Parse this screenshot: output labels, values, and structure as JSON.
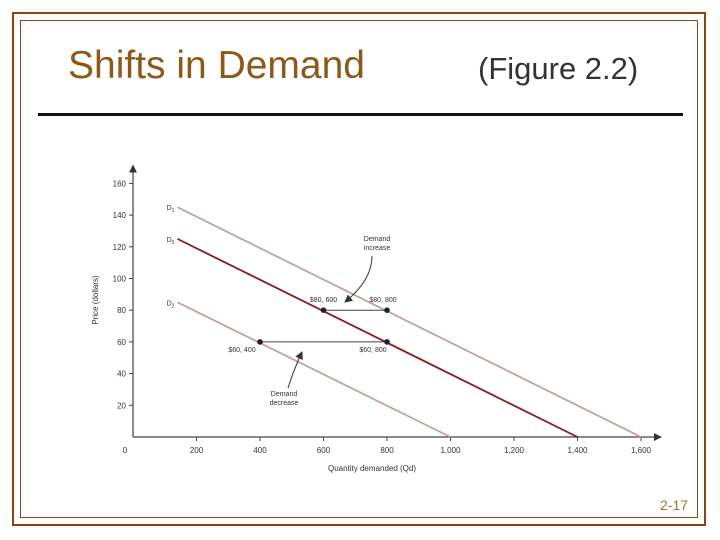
{
  "slide": {
    "title": "Shifts in Demand",
    "subtitle": "(Figure 2.2)",
    "slide_number": "2-17",
    "colors": {
      "frame": "#8b4513",
      "title": "#8b5a1a",
      "d0": "#8b1a1a",
      "shifted": "#c7a0a0"
    }
  },
  "chart_data": {
    "type": "line",
    "xlabel": "Quantity demanded (Qd)",
    "ylabel": "Price (dollars)",
    "xlim": [
      0,
      1650
    ],
    "ylim": [
      0,
      170
    ],
    "x_ticks": [
      0,
      200,
      400,
      600,
      800,
      1000,
      1200,
      1400,
      1600
    ],
    "x_tick_labels": [
      "0",
      "200",
      "400",
      "600",
      "800",
      "1,000",
      "1,200",
      "1,400",
      "1,600"
    ],
    "y_ticks": [
      20,
      40,
      60,
      80,
      100,
      120,
      140,
      160
    ],
    "y_tick_labels": [
      "20",
      "40",
      "60",
      "80",
      "100",
      "120",
      "140",
      "160"
    ],
    "series": [
      {
        "name": "D1",
        "points": [
          [
            140,
            145
          ],
          [
            1600,
            0
          ]
        ],
        "color": "#c7a0a0"
      },
      {
        "name": "D0",
        "points": [
          [
            140,
            125
          ],
          [
            1400,
            0
          ]
        ],
        "color": "#8b1a1a"
      },
      {
        "name": "D2",
        "points": [
          [
            140,
            85
          ],
          [
            1000,
            0
          ]
        ],
        "color": "#c7a0a0"
      }
    ],
    "points": [
      {
        "x": 600,
        "y": 80,
        "label": "$80, 600"
      },
      {
        "x": 800,
        "y": 80,
        "label": "$80, 800"
      },
      {
        "x": 400,
        "y": 60,
        "label": "$60, 400"
      },
      {
        "x": 800,
        "y": 60,
        "label": "$60, 800"
      }
    ],
    "annotations": [
      {
        "text_lines": [
          "Demand",
          "increase"
        ]
      },
      {
        "text_lines": [
          "Demand",
          "decrease"
        ]
      }
    ]
  }
}
